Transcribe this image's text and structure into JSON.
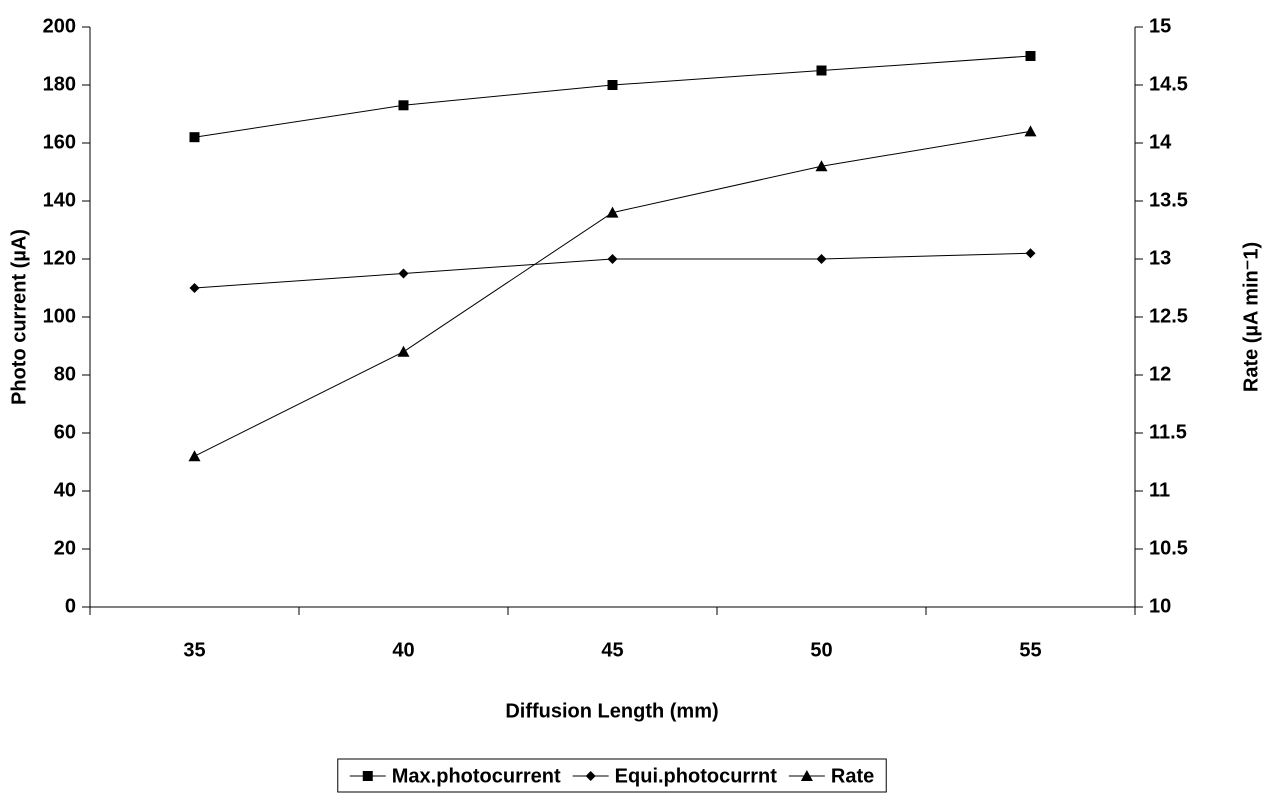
{
  "chart_data": {
    "type": "line",
    "x_label": "Diffusion Length (mm)",
    "y_label": "Photo current (µA)",
    "y2_label": "Rate (µA min⁻1)",
    "categories": [
      "35",
      "40",
      "45",
      "50",
      "55"
    ],
    "ylim": [
      0,
      200
    ],
    "yticks": [
      0,
      20,
      40,
      60,
      80,
      100,
      120,
      140,
      160,
      180,
      200
    ],
    "y2lim": [
      10,
      15
    ],
    "y2ticks": [
      10,
      10.5,
      11,
      11.5,
      12,
      12.5,
      13,
      13.5,
      14,
      14.5,
      15
    ],
    "legend": "bottom",
    "series": [
      {
        "name": "Max.photocurrent",
        "color": "#000000",
        "marker": "square",
        "values": [
          162,
          173,
          180,
          185,
          190
        ]
      },
      {
        "name": "Equi.photocurrnt",
        "color": "#000000",
        "marker": "diamond",
        "values": [
          110,
          115,
          120,
          120,
          122
        ]
      },
      {
        "name": "Rate",
        "color": "#000000",
        "marker": "triangle",
        "axis": "y2",
        "values": [
          11.3,
          12.2,
          13.4,
          13.8,
          14.1
        ]
      }
    ]
  }
}
